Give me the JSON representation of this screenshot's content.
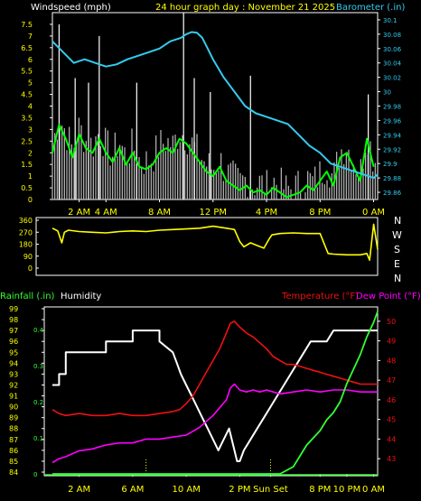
{
  "header": {
    "windspeed_label": "Windspeed (mph)",
    "title": "24 hour graph day : November 21 2025",
    "barometer_label": "Barometer (.in)"
  },
  "middle": {
    "compass": [
      "N",
      "W",
      "S",
      "E",
      "N"
    ]
  },
  "bottom_header": {
    "rainfall_label": "Rainfall (.in)",
    "humidity_label": "Humidity",
    "temperature_label": "Temperature (°F)",
    "dewpoint_label": "Dew Point (°F)"
  },
  "colors": {
    "wind_avg": "#ffffff",
    "wind_gust": "#00ff00",
    "barometer": "#33ccee",
    "direction": "#ffff00",
    "humidity": "#ffffff",
    "temperature": "#ee1111",
    "dewpoint": "#ff00ff",
    "rain": "#33ff33",
    "tick_label": "#ffff00",
    "axis": "#ffffff"
  },
  "chart_data": [
    {
      "type": "line",
      "name": "wind-barometer",
      "x_ticks": [
        {
          "x": 2,
          "label": "2 AM"
        },
        {
          "x": 4,
          "label": "4 AM"
        },
        {
          "x": 8,
          "label": "8 AM"
        },
        {
          "x": 12,
          "label": "12 PM"
        },
        {
          "x": 16,
          "label": "4 PM"
        },
        {
          "x": 20,
          "label": "8 PM"
        },
        {
          "x": 24,
          "label": "0 AM"
        }
      ],
      "xlim": [
        0,
        24.3
      ],
      "ylim": [
        0,
        8
      ],
      "y_ticks": [
        "0",
        "0.5",
        "1",
        "1.5",
        "2",
        "2.5",
        "3",
        "3.5",
        "4",
        "4.5",
        "5",
        "5.5",
        "6",
        "6.5",
        "7",
        "7.5"
      ],
      "y2lim": [
        29.85,
        30.11
      ],
      "y2_ticks": [
        "29.86",
        "29.88",
        "29.9",
        "29.92",
        "29.94",
        "29.96",
        "29.98",
        "30",
        "30.02",
        "30.04",
        "30.06",
        "30.08",
        "30.1"
      ],
      "gust_spikes": [
        {
          "x": 0.5,
          "y": 7.5
        },
        {
          "x": 1.7,
          "y": 5.2
        },
        {
          "x": 2.7,
          "y": 5.0
        },
        {
          "x": 3.5,
          "y": 7.0
        },
        {
          "x": 6.3,
          "y": 5.0
        },
        {
          "x": 9.8,
          "y": 8.0
        },
        {
          "x": 10.6,
          "y": 5.2
        },
        {
          "x": 11.8,
          "y": 4.6
        },
        {
          "x": 14.8,
          "y": 5.3
        },
        {
          "x": 23.6,
          "y": 4.5
        }
      ],
      "series": [
        {
          "name": "Barometer",
          "axis": "right",
          "x": [
            0,
            0.8,
            1.6,
            2.4,
            3.2,
            4.0,
            4.8,
            5.6,
            6.4,
            7.2,
            8.0,
            8.8,
            9.6,
            10.0,
            10.4,
            10.8,
            11.2,
            11.6,
            12.0,
            12.8,
            13.6,
            14.4,
            15.2,
            16.0,
            16.8,
            17.6,
            18.4,
            19.2,
            20.0,
            20.8,
            21.6,
            22.4,
            23.2,
            24.0,
            24.3
          ],
          "y": [
            30.07,
            30.055,
            30.04,
            30.045,
            30.04,
            30.035,
            30.038,
            30.045,
            30.05,
            30.055,
            30.06,
            30.07,
            30.075,
            30.08,
            30.083,
            30.082,
            30.075,
            30.06,
            30.045,
            30.02,
            30.0,
            29.98,
            29.97,
            29.965,
            29.96,
            29.955,
            29.94,
            29.925,
            29.915,
            29.9,
            29.895,
            29.89,
            29.885,
            29.88,
            29.885
          ]
        },
        {
          "name": "Wind",
          "axis": "left",
          "x": [
            0,
            0.5,
            1.0,
            1.5,
            2.0,
            2.5,
            3.0,
            3.5,
            4.0,
            4.5,
            5.0,
            5.5,
            6.0,
            6.5,
            7.0,
            7.5,
            8.0,
            8.5,
            9.0,
            9.5,
            10.0,
            10.5,
            11.0,
            11.5,
            12.0,
            12.5,
            13.0,
            13.5,
            14.0,
            14.5,
            15.0,
            15.5,
            16.0,
            16.5,
            17.0,
            17.5,
            18.0,
            18.5,
            19.0,
            19.5,
            20.0,
            20.5,
            21.0,
            21.5,
            22.0,
            22.5,
            23.0,
            23.5,
            24.0
          ],
          "y": [
            2.0,
            3.2,
            2.6,
            1.8,
            2.8,
            2.2,
            2.0,
            2.6,
            2.0,
            1.6,
            2.2,
            1.5,
            2.0,
            1.4,
            1.3,
            1.5,
            2.0,
            2.2,
            2.0,
            2.6,
            2.4,
            2.0,
            1.6,
            1.2,
            1.0,
            1.4,
            0.8,
            0.6,
            0.4,
            0.6,
            0.3,
            0.4,
            0.2,
            0.5,
            0.3,
            0.1,
            0.2,
            0.3,
            0.6,
            0.4,
            0.8,
            1.2,
            0.6,
            1.8,
            2.0,
            1.4,
            0.8,
            2.6,
            1.4
          ]
        }
      ]
    },
    {
      "type": "line",
      "name": "wind-direction",
      "xlim": [
        0,
        24.3
      ],
      "ylim": [
        0,
        360
      ],
      "y_ticks": [
        "0",
        "90",
        "180",
        "270",
        "360"
      ],
      "series": [
        {
          "name": "Direction",
          "x": [
            0,
            0.4,
            0.7,
            0.9,
            1.2,
            2.0,
            3.0,
            4.0,
            5.0,
            6.0,
            7.0,
            8.0,
            9.0,
            10.0,
            11.0,
            12.0,
            13.0,
            13.6,
            14.0,
            14.3,
            14.8,
            15.3,
            15.8,
            16.2,
            16.4,
            17.0,
            18.0,
            19.0,
            20.0,
            20.4,
            20.6,
            21.0,
            22.0,
            23.0,
            23.5,
            23.7,
            24.0,
            24.3
          ],
          "y": [
            300,
            280,
            190,
            270,
            285,
            275,
            270,
            265,
            275,
            280,
            275,
            285,
            290,
            295,
            300,
            315,
            300,
            290,
            200,
            160,
            190,
            170,
            150,
            220,
            250,
            260,
            265,
            260,
            260,
            160,
            110,
            105,
            100,
            100,
            110,
            60,
            330,
            140
          ]
        }
      ]
    },
    {
      "type": "line",
      "name": "rain-humidity-temperature",
      "x_ticks": [
        {
          "x": 2,
          "label": "2 AM"
        },
        {
          "x": 6,
          "label": "6 AM"
        },
        {
          "x": 10,
          "label": "10 AM"
        },
        {
          "x": 14,
          "label": "2 PM"
        },
        {
          "x": 16.3,
          "label": "Sun Set"
        },
        {
          "x": 20,
          "label": "8 PM"
        },
        {
          "x": 22,
          "label": "10 PM"
        },
        {
          "x": 24,
          "label": "0 AM"
        }
      ],
      "xlim": [
        0,
        24.3
      ],
      "rain_ylim": [
        0,
        0.45
      ],
      "rain_ticks": [
        "0",
        "0.1",
        "0.2",
        "0.3",
        "0.4"
      ],
      "humidity_ylim": [
        84,
        99
      ],
      "humidity_ticks": [
        "84",
        "85",
        "86",
        "87",
        "88",
        "89",
        "90",
        "91",
        "92",
        "93",
        "94",
        "95",
        "96",
        "97",
        "98",
        "99"
      ],
      "temp_ylim": [
        42.5,
        50.5
      ],
      "temp_ticks": [
        "43",
        "44",
        "45",
        "46",
        "47",
        "48",
        "49",
        "50"
      ],
      "series": [
        {
          "name": "Humidity",
          "axis": "humidity",
          "x": [
            0,
            0.5,
            0.5,
            1.0,
            1.0,
            4.0,
            4.0,
            6.0,
            6.0,
            8.0,
            8.0,
            9.0,
            9.3,
            9.6,
            10.0,
            10.4,
            10.8,
            11.2,
            11.6,
            12.0,
            12.4,
            12.8,
            13.2,
            13.6,
            13.8,
            14.0,
            14.3,
            14.8,
            15.3,
            15.8,
            16.3,
            16.8,
            17.3,
            17.8,
            18.3,
            18.8,
            19.3,
            20.0,
            20.5,
            21.0,
            21.5,
            22.0,
            23.0,
            24.3
          ],
          "y": [
            92,
            92,
            93,
            93,
            95,
            95,
            96,
            96,
            97,
            97,
            96,
            95,
            94,
            93,
            92,
            91,
            90,
            89,
            88,
            87,
            86,
            87,
            88,
            86,
            85,
            85,
            86,
            87,
            88,
            89,
            90,
            91,
            92,
            93,
            94,
            95,
            96,
            96,
            96,
            97,
            97,
            97,
            97,
            97
          ]
        },
        {
          "name": "Temperature",
          "axis": "temp",
          "x": [
            0,
            0.5,
            1.0,
            2.0,
            3.0,
            4.0,
            5.0,
            6.0,
            7.0,
            8.0,
            9.0,
            9.5,
            10.0,
            10.5,
            11.0,
            11.5,
            12.0,
            12.5,
            13.0,
            13.3,
            13.6,
            14.0,
            14.5,
            15.0,
            15.5,
            16.0,
            16.5,
            17.0,
            17.5,
            18.0,
            18.5,
            19.0,
            19.5,
            20.0,
            20.5,
            21.0,
            21.5,
            22.0,
            22.5,
            23.0,
            23.5,
            24.0,
            24.3
          ],
          "y": [
            45.5,
            45.3,
            45.2,
            45.3,
            45.2,
            45.2,
            45.3,
            45.2,
            45.2,
            45.3,
            45.4,
            45.5,
            45.8,
            46.2,
            46.8,
            47.4,
            48.0,
            48.6,
            49.4,
            49.9,
            50.0,
            49.7,
            49.4,
            49.2,
            48.9,
            48.6,
            48.2,
            48.0,
            47.8,
            47.8,
            47.7,
            47.6,
            47.5,
            47.4,
            47.3,
            47.2,
            47.1,
            47.0,
            46.9,
            46.8,
            46.8,
            46.8,
            46.8
          ]
        },
        {
          "name": "Dew Point",
          "axis": "temp",
          "x": [
            0,
            0.5,
            1.0,
            2.0,
            3.0,
            4.0,
            5.0,
            6.0,
            7.0,
            8.0,
            9.0,
            10.0,
            10.5,
            11.0,
            11.5,
            12.0,
            12.5,
            13.0,
            13.3,
            13.6,
            14.0,
            14.5,
            15.0,
            15.5,
            16.0,
            16.5,
            17.0,
            18.0,
            19.0,
            20.0,
            21.0,
            22.0,
            23.0,
            24.0,
            24.3
          ],
          "y": [
            42.8,
            43.0,
            43.1,
            43.4,
            43.5,
            43.7,
            43.8,
            43.8,
            44.0,
            44.0,
            44.1,
            44.2,
            44.4,
            44.6,
            44.9,
            45.2,
            45.6,
            46.0,
            46.6,
            46.8,
            46.5,
            46.4,
            46.5,
            46.4,
            46.5,
            46.4,
            46.3,
            46.4,
            46.5,
            46.4,
            46.5,
            46.5,
            46.4,
            46.4,
            46.4
          ]
        },
        {
          "name": "Rainfall",
          "axis": "rain",
          "x": [
            0,
            17.0,
            17.5,
            18.0,
            18.5,
            19.0,
            19.5,
            20.0,
            20.5,
            21.0,
            21.5,
            22.0,
            22.5,
            23.0,
            23.5,
            24.0,
            24.3
          ],
          "y": [
            0,
            0,
            0.01,
            0.02,
            0.05,
            0.08,
            0.1,
            0.12,
            0.15,
            0.17,
            0.2,
            0.25,
            0.29,
            0.33,
            0.38,
            0.42,
            0.45
          ]
        }
      ]
    }
  ]
}
